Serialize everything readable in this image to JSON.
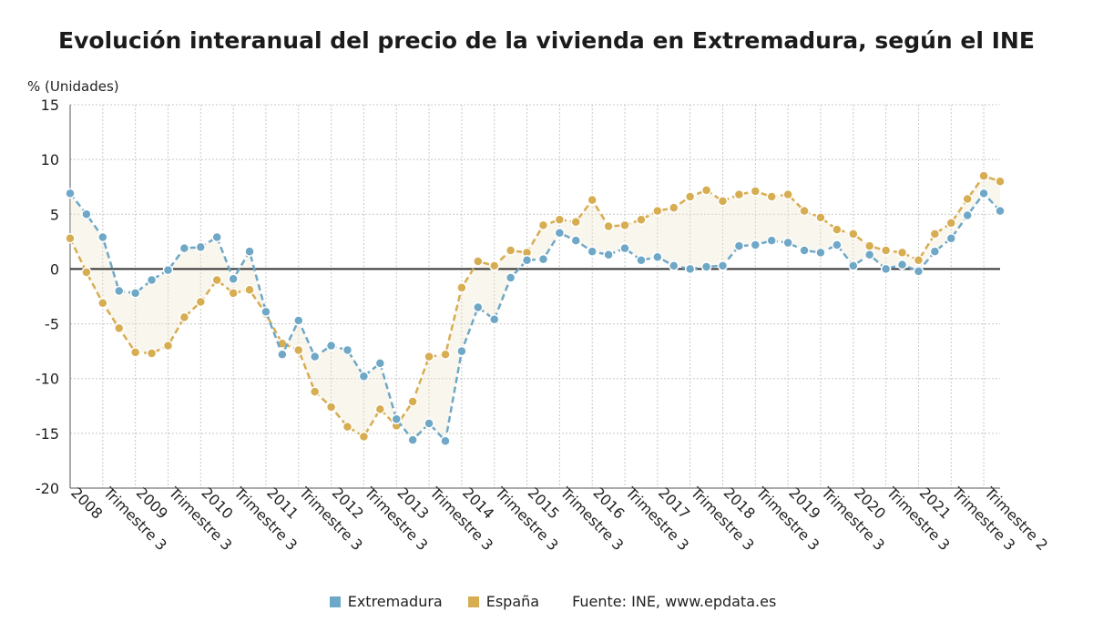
{
  "title": "Evolución interanual del precio de la vivienda en Extremadura, según el INE",
  "unit_label": "% (Unidades)",
  "source": "Fuente: INE, www.epdata.es",
  "colors": {
    "extremadura": "#6fa8c7",
    "espana": "#d7ad52",
    "grid": "#c8c8c8",
    "zero_line": "#333333"
  },
  "chart_data": {
    "type": "line",
    "ylabel": "% (Unidades)",
    "ylim": [
      -20,
      15
    ],
    "yticks": [
      15,
      10,
      5,
      0,
      -5,
      -10,
      -15,
      -20
    ],
    "grid": true,
    "legend_position": "bottom",
    "x_tick_labels": [
      "2008",
      "Trimestre 3",
      "2009",
      "Trimestre 3",
      "2010",
      "Trimestre 3",
      "2011",
      "Trimestre 3",
      "2012",
      "Trimestre 3",
      "2013",
      "Trimestre 3",
      "2014",
      "Trimestre 3",
      "2015",
      "Trimestre 3",
      "2016",
      "Trimestre 3",
      "2017",
      "Trimestre 3",
      "2018",
      "Trimestre 3",
      "2019",
      "Trimestre 3",
      "2020",
      "Trimestre 3",
      "2021",
      "Trimestre 3",
      "Trimestre 2"
    ],
    "x": [
      "2008 T1",
      "2008 T2",
      "2008 T3",
      "2008 T4",
      "2009 T1",
      "2009 T2",
      "2009 T3",
      "2009 T4",
      "2010 T1",
      "2010 T2",
      "2010 T3",
      "2010 T4",
      "2011 T1",
      "2011 T2",
      "2011 T3",
      "2011 T4",
      "2012 T1",
      "2012 T2",
      "2012 T3",
      "2012 T4",
      "2013 T1",
      "2013 T2",
      "2013 T3",
      "2013 T4",
      "2014 T1",
      "2014 T2",
      "2014 T3",
      "2014 T4",
      "2015 T1",
      "2015 T2",
      "2015 T3",
      "2015 T4",
      "2016 T1",
      "2016 T2",
      "2016 T3",
      "2016 T4",
      "2017 T1",
      "2017 T2",
      "2017 T3",
      "2017 T4",
      "2018 T1",
      "2018 T2",
      "2018 T3",
      "2018 T4",
      "2019 T1",
      "2019 T2",
      "2019 T3",
      "2019 T4",
      "2020 T1",
      "2020 T2",
      "2020 T3",
      "2020 T4",
      "2021 T1",
      "2021 T2",
      "2021 T3",
      "2021 T4",
      "2022 T1",
      "2022 T2"
    ],
    "series": [
      {
        "name": "Extremadura",
        "values": [
          6.9,
          5.0,
          2.9,
          -2.0,
          -2.2,
          -1.0,
          -0.1,
          1.9,
          2.0,
          2.9,
          -0.9,
          1.6,
          -3.9,
          -7.8,
          -4.7,
          -8.0,
          -7.0,
          -7.4,
          -9.8,
          -8.6,
          -13.7,
          -15.6,
          -14.1,
          -15.7,
          -7.5,
          -3.5,
          -4.6,
          -0.8,
          0.8,
          0.9,
          3.3,
          2.6,
          1.6,
          1.3,
          1.9,
          0.8,
          1.1,
          0.3,
          0.0,
          0.2,
          0.3,
          2.1,
          2.2,
          2.6,
          2.4,
          1.7,
          1.5,
          2.2,
          0.3,
          1.3,
          0.0,
          0.4,
          -0.2,
          1.6,
          2.8,
          4.9,
          6.9,
          5.3
        ]
      },
      {
        "name": "España",
        "values": [
          2.8,
          -0.3,
          -3.1,
          -5.4,
          -7.6,
          -7.7,
          -7.0,
          -4.4,
          -3.0,
          -1.0,
          -2.2,
          -1.9,
          -4.1,
          -6.8,
          -7.4,
          -11.2,
          -12.6,
          -14.4,
          -15.3,
          -12.8,
          -14.3,
          -12.1,
          -8.0,
          -7.8,
          -1.7,
          0.7,
          0.3,
          1.7,
          1.5,
          4.0,
          4.5,
          4.3,
          6.3,
          3.9,
          4.0,
          4.5,
          5.3,
          5.6,
          6.6,
          7.2,
          6.2,
          6.8,
          7.1,
          6.6,
          6.8,
          5.3,
          4.7,
          3.6,
          3.2,
          2.1,
          1.7,
          1.5,
          0.8,
          3.2,
          4.2,
          6.4,
          8.5,
          8.0
        ]
      }
    ]
  }
}
